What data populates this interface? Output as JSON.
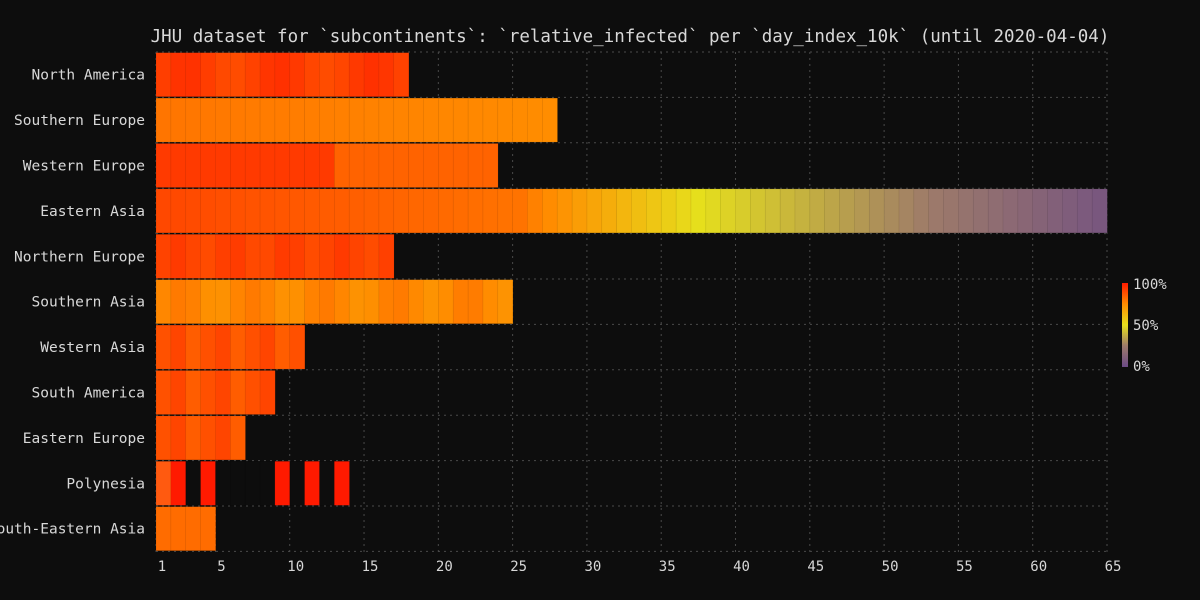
{
  "chart_data": {
    "type": "heatmap",
    "title": "JHU dataset for `subcontinents`: `relative_infected` per `day_index_10k` (until 2020-04-04)",
    "xlabel": "",
    "ylabel": "",
    "xlim": [
      1,
      65
    ],
    "x_ticks": [
      "1",
      "5",
      "10",
      "15",
      "20",
      "25",
      "30",
      "35",
      "40",
      "45",
      "50",
      "55",
      "60",
      "65"
    ],
    "grid": true,
    "colorbar": {
      "labels": [
        "100%",
        "50%",
        "0%"
      ],
      "placement": "right"
    },
    "series": [
      {
        "name": "North America",
        "days": 17
      },
      {
        "name": "Southern Europe",
        "days": 27
      },
      {
        "name": "Western Europe",
        "days": 23
      },
      {
        "name": "Eastern Asia",
        "days": 64
      },
      {
        "name": "Northern Europe",
        "days": 16
      },
      {
        "name": "Southern Asia",
        "days": 24
      },
      {
        "name": "Western Asia",
        "days": 10
      },
      {
        "name": "South America",
        "days": 8
      },
      {
        "name": "Eastern Europe",
        "days": 6
      },
      {
        "name": "Polynesia",
        "days": 13
      },
      {
        "name": "South-Eastern Asia",
        "days": 4
      }
    ]
  }
}
